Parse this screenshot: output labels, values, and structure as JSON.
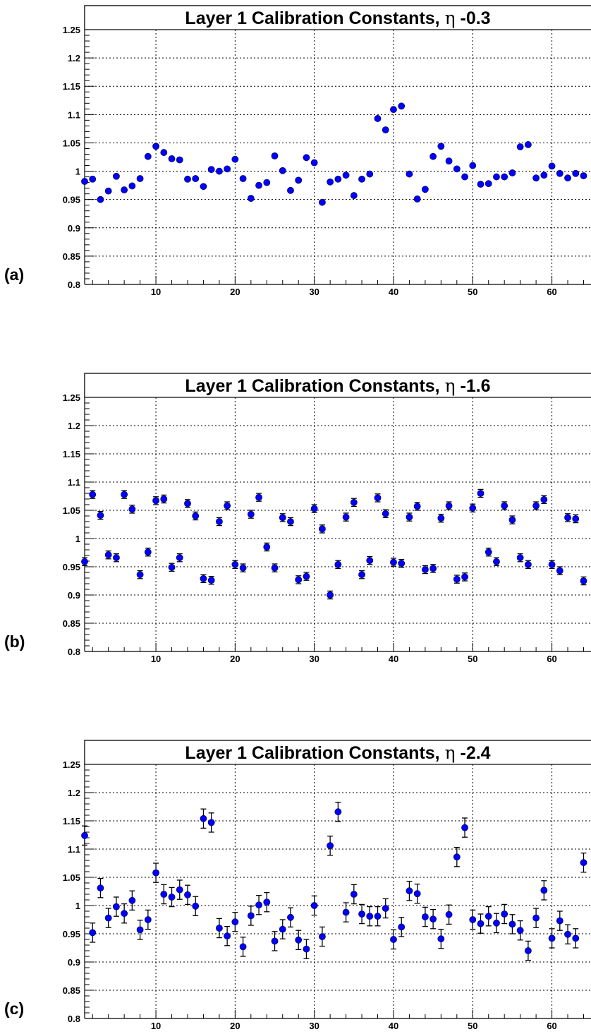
{
  "chart_data": [
    {
      "type": "scatter",
      "panel_label": "(a)",
      "title_prefix": "Layer 1 Calibration Constants,",
      "title_symbol": "η",
      "title_value": "-0.3",
      "xlim": [
        1,
        65
      ],
      "ylim": [
        0.8,
        1.25
      ],
      "x_ticks": [
        10,
        20,
        30,
        40,
        50,
        60
      ],
      "y_ticks": [
        "0.8",
        "0.85",
        "0.9",
        "0.95",
        "1",
        "1.05",
        "1.1",
        "1.15",
        "1.2",
        "1.25"
      ],
      "grid": true,
      "x": [
        1,
        2,
        3,
        4,
        5,
        6,
        7,
        8,
        9,
        10,
        11,
        12,
        13,
        14,
        15,
        16,
        17,
        18,
        19,
        20,
        21,
        22,
        23,
        24,
        25,
        26,
        27,
        28,
        29,
        30,
        31,
        32,
        33,
        34,
        35,
        36,
        37,
        38,
        39,
        40,
        41,
        42,
        43,
        44,
        45,
        46,
        47,
        48,
        49,
        50,
        51,
        52,
        53,
        54,
        55,
        56,
        57,
        58,
        59,
        60,
        61,
        62,
        63,
        64
      ],
      "y": [
        0.982,
        0.986,
        0.95,
        0.965,
        0.991,
        0.967,
        0.974,
        0.987,
        1.026,
        1.044,
        1.033,
        1.022,
        1.02,
        0.986,
        0.987,
        0.973,
        1.003,
        1.0,
        1.004,
        1.021,
        0.987,
        0.952,
        0.975,
        0.98,
        1.027,
        1.001,
        0.966,
        0.984,
        1.024,
        1.015,
        0.945,
        0.981,
        0.986,
        0.993,
        0.957,
        0.986,
        0.995,
        1.093,
        1.073,
        1.109,
        1.115,
        0.995,
        0.951,
        0.968,
        1.026,
        1.044,
        1.018,
        1.004,
        0.99,
        1.01,
        0.977,
        0.978,
        0.99,
        0.99,
        0.997,
        1.043,
        1.047,
        0.988,
        0.993,
        1.009,
        0.996,
        0.988,
        0.996,
        0.992
      ],
      "yerr": [
        0.004,
        0.004,
        0.004,
        0.004,
        0.004,
        0.004,
        0.004,
        0.004,
        0.004,
        0.004,
        0.004,
        0.004,
        0.004,
        0.004,
        0.004,
        0.004,
        0.004,
        0.004,
        0.004,
        0.004,
        0.004,
        0.004,
        0.004,
        0.004,
        0.004,
        0.004,
        0.004,
        0.004,
        0.004,
        0.004,
        0.004,
        0.004,
        0.004,
        0.004,
        0.004,
        0.004,
        0.004,
        0.004,
        0.004,
        0.004,
        0.004,
        0.004,
        0.004,
        0.004,
        0.004,
        0.004,
        0.004,
        0.004,
        0.004,
        0.004,
        0.004,
        0.004,
        0.004,
        0.004,
        0.004,
        0.004,
        0.004,
        0.004,
        0.004,
        0.004,
        0.004,
        0.004,
        0.004,
        0.004
      ]
    },
    {
      "type": "scatter",
      "panel_label": "(b)",
      "title_prefix": "Layer 1 Calibration Constants,",
      "title_symbol": "η",
      "title_value": "-1.6",
      "xlim": [
        1,
        65
      ],
      "ylim": [
        0.8,
        1.25
      ],
      "x_ticks": [
        10,
        20,
        30,
        40,
        50,
        60
      ],
      "y_ticks": [
        "0.8",
        "0.85",
        "0.9",
        "0.95",
        "1",
        "1.05",
        "1.1",
        "1.15",
        "1.2",
        "1.25"
      ],
      "grid": true,
      "x": [
        1,
        2,
        3,
        4,
        5,
        6,
        7,
        8,
        9,
        10,
        11,
        12,
        13,
        14,
        15,
        16,
        17,
        18,
        19,
        20,
        21,
        22,
        23,
        24,
        25,
        26,
        27,
        28,
        29,
        30,
        31,
        32,
        33,
        34,
        35,
        36,
        37,
        38,
        39,
        40,
        41,
        42,
        43,
        44,
        45,
        46,
        47,
        48,
        49,
        50,
        51,
        52,
        53,
        54,
        55,
        56,
        57,
        58,
        59,
        60,
        61,
        62,
        63,
        64
      ],
      "y": [
        0.959,
        1.078,
        1.041,
        0.971,
        0.966,
        1.078,
        1.052,
        0.936,
        0.976,
        1.067,
        1.07,
        0.949,
        0.966,
        1.062,
        1.04,
        0.929,
        0.926,
        1.03,
        1.058,
        0.954,
        0.948,
        1.043,
        1.073,
        0.985,
        0.948,
        1.037,
        1.03,
        0.927,
        0.933,
        1.053,
        1.017,
        0.9,
        0.954,
        1.038,
        1.064,
        0.936,
        0.961,
        1.072,
        1.044,
        0.958,
        0.956,
        1.038,
        1.057,
        0.945,
        0.947,
        1.036,
        1.058,
        0.928,
        0.932,
        1.054,
        1.08,
        0.976,
        0.959,
        1.058,
        1.033,
        0.966,
        0.954,
        1.058,
        1.069,
        0.954,
        0.943,
        1.037,
        1.035,
        0.925
      ],
      "yerr": [
        0.007,
        0.007,
        0.007,
        0.007,
        0.007,
        0.007,
        0.007,
        0.007,
        0.007,
        0.007,
        0.007,
        0.007,
        0.007,
        0.007,
        0.007,
        0.007,
        0.007,
        0.007,
        0.007,
        0.007,
        0.007,
        0.007,
        0.007,
        0.007,
        0.007,
        0.007,
        0.007,
        0.007,
        0.007,
        0.007,
        0.007,
        0.007,
        0.007,
        0.007,
        0.007,
        0.007,
        0.007,
        0.007,
        0.007,
        0.007,
        0.007,
        0.007,
        0.007,
        0.007,
        0.007,
        0.007,
        0.007,
        0.007,
        0.007,
        0.007,
        0.007,
        0.007,
        0.007,
        0.007,
        0.007,
        0.007,
        0.007,
        0.007,
        0.007,
        0.007,
        0.007,
        0.007,
        0.007,
        0.007
      ]
    },
    {
      "type": "scatter",
      "panel_label": "(c)",
      "title_prefix": "Layer 1 Calibration Constants,",
      "title_symbol": "η",
      "title_value": "-2.4",
      "xlim": [
        1,
        65
      ],
      "ylim": [
        0.8,
        1.25
      ],
      "x_ticks": [
        10,
        20,
        30,
        40,
        50,
        60
      ],
      "y_ticks": [
        "0.8",
        "0.85",
        "0.9",
        "0.95",
        "1",
        "1.05",
        "1.1",
        "1.15",
        "1.2",
        "1.25"
      ],
      "grid": true,
      "x": [
        1,
        2,
        3,
        4,
        5,
        6,
        7,
        8,
        9,
        10,
        11,
        12,
        13,
        14,
        15,
        16,
        17,
        18,
        19,
        20,
        21,
        22,
        23,
        24,
        25,
        26,
        27,
        28,
        29,
        30,
        31,
        32,
        33,
        34,
        35,
        36,
        37,
        38,
        39,
        40,
        41,
        42,
        43,
        44,
        45,
        46,
        47,
        48,
        49,
        50,
        51,
        52,
        53,
        54,
        55,
        56,
        57,
        58,
        59,
        60,
        61,
        62,
        63,
        64
      ],
      "y": [
        1.124,
        0.952,
        1.031,
        0.978,
        0.998,
        0.986,
        1.009,
        0.957,
        0.975,
        1.058,
        1.02,
        1.015,
        1.028,
        1.019,
        0.999,
        1.154,
        1.147,
        0.96,
        0.946,
        0.971,
        0.927,
        0.982,
        1.001,
        1.006,
        0.937,
        0.958,
        0.979,
        0.939,
        0.923,
        1.0,
        0.945,
        1.106,
        1.166,
        0.988,
        1.02,
        0.985,
        0.981,
        0.981,
        0.995,
        0.94,
        0.962,
        1.026,
        1.021,
        0.98,
        0.976,
        0.941,
        0.984,
        1.086,
        1.138,
        0.975,
        0.968,
        0.981,
        0.969,
        0.985,
        0.967,
        0.956,
        0.92,
        0.978,
        1.027,
        0.942,
        0.973,
        0.949,
        0.942,
        1.076
      ],
      "yerr": [
        0.017,
        0.017,
        0.017,
        0.017,
        0.017,
        0.017,
        0.017,
        0.017,
        0.017,
        0.017,
        0.017,
        0.017,
        0.017,
        0.017,
        0.017,
        0.017,
        0.017,
        0.017,
        0.017,
        0.017,
        0.017,
        0.017,
        0.017,
        0.017,
        0.017,
        0.017,
        0.017,
        0.017,
        0.017,
        0.017,
        0.017,
        0.017,
        0.017,
        0.017,
        0.017,
        0.017,
        0.017,
        0.017,
        0.017,
        0.017,
        0.017,
        0.017,
        0.017,
        0.017,
        0.017,
        0.017,
        0.017,
        0.017,
        0.017,
        0.017,
        0.017,
        0.017,
        0.017,
        0.017,
        0.017,
        0.017,
        0.017,
        0.017,
        0.017,
        0.017,
        0.017,
        0.017,
        0.017,
        0.017
      ]
    }
  ]
}
